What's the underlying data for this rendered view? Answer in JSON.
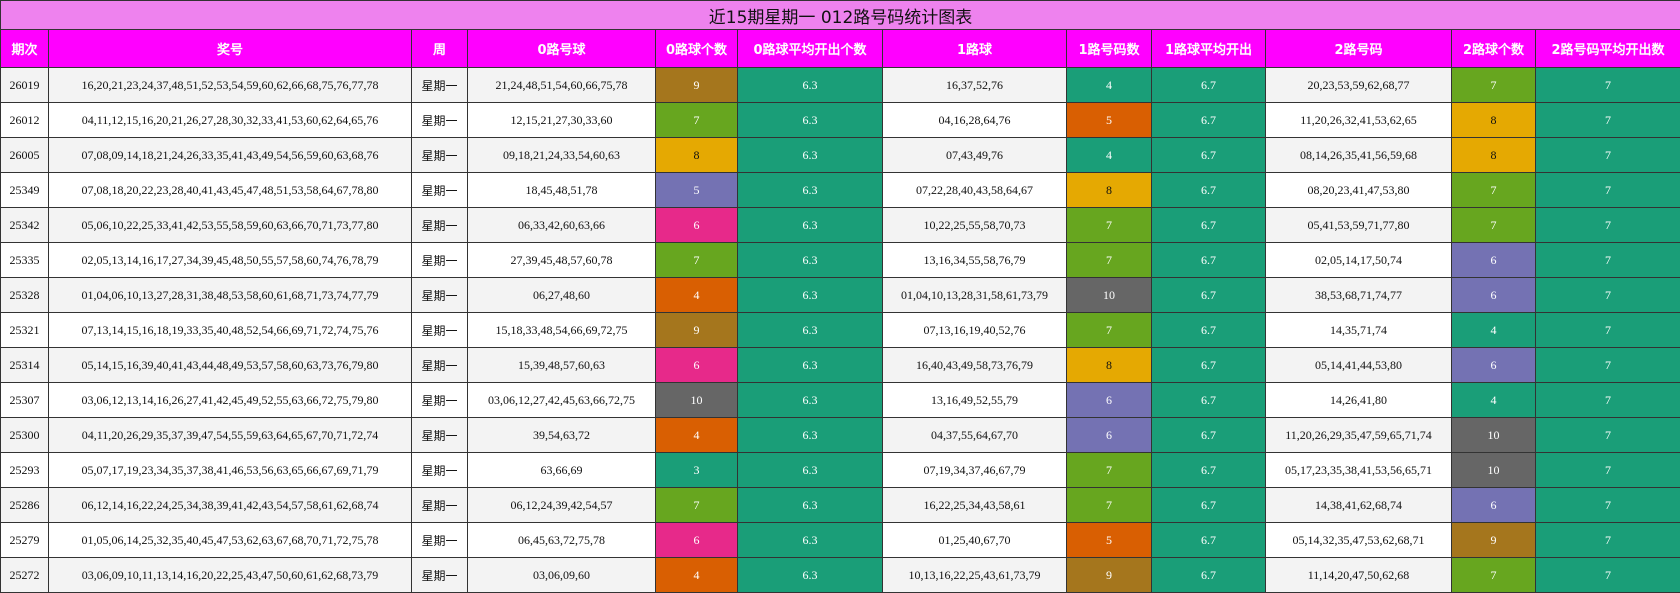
{
  "title": "近15期星期一 012路号码统计图表",
  "headers": [
    "期次",
    "奖号",
    "周",
    "0路号球",
    "0路球个数",
    "0路球平均开出个数",
    "1路球",
    "1路号码数",
    "1路球平均开出",
    "2路号码",
    "2路球个数",
    "2路号码平均开出数"
  ],
  "colors": {
    "teal": "#1a9e78",
    "olive": "#a5761d",
    "lime": "#67a61f",
    "gold": "#e5a902",
    "violet": "#7472b3",
    "pink": "#e7298a",
    "orange": "#d95f02",
    "gray": "#666666",
    "header": "#ff00ff",
    "title": "#ee82ee"
  },
  "rows": [
    {
      "period": "26019",
      "numbers": "16,20,21,23,24,37,48,51,52,53,54,59,60,62,66,68,75,76,77,78",
      "week": "星期一",
      "r0": "21,24,48,51,54,60,66,75,78",
      "r0c": "9",
      "r0c_color": "olive",
      "r0avg": "6.3",
      "r1": "16,37,52,76",
      "r1c": "4",
      "r1c_color": "teal",
      "r1avg": "6.7",
      "r2": "20,23,53,59,62,68,77",
      "r2c": "7",
      "r2c_color": "lime",
      "r2avg": "7"
    },
    {
      "period": "26012",
      "numbers": "04,11,12,15,16,20,21,26,27,28,30,32,33,41,53,60,62,64,65,76",
      "week": "星期一",
      "r0": "12,15,21,27,30,33,60",
      "r0c": "7",
      "r0c_color": "lime",
      "r0avg": "6.3",
      "r1": "04,16,28,64,76",
      "r1c": "5",
      "r1c_color": "orange",
      "r1avg": "6.7",
      "r2": "11,20,26,32,41,53,62,65",
      "r2c": "8",
      "r2c_color": "gold",
      "r2avg": "7"
    },
    {
      "period": "26005",
      "numbers": "07,08,09,14,18,21,24,26,33,35,41,43,49,54,56,59,60,63,68,76",
      "week": "星期一",
      "r0": "09,18,21,24,33,54,60,63",
      "r0c": "8",
      "r0c_color": "gold",
      "r0avg": "6.3",
      "r1": "07,43,49,76",
      "r1c": "4",
      "r1c_color": "teal",
      "r1avg": "6.7",
      "r2": "08,14,26,35,41,56,59,68",
      "r2c": "8",
      "r2c_color": "gold",
      "r2avg": "7"
    },
    {
      "period": "25349",
      "numbers": "07,08,18,20,22,23,28,40,41,43,45,47,48,51,53,58,64,67,78,80",
      "week": "星期一",
      "r0": "18,45,48,51,78",
      "r0c": "5",
      "r0c_color": "violet",
      "r0avg": "6.3",
      "r1": "07,22,28,40,43,58,64,67",
      "r1c": "8",
      "r1c_color": "gold",
      "r1avg": "6.7",
      "r2": "08,20,23,41,47,53,80",
      "r2c": "7",
      "r2c_color": "lime",
      "r2avg": "7"
    },
    {
      "period": "25342",
      "numbers": "05,06,10,22,25,33,41,42,53,55,58,59,60,63,66,70,71,73,77,80",
      "week": "星期一",
      "r0": "06,33,42,60,63,66",
      "r0c": "6",
      "r0c_color": "pink",
      "r0avg": "6.3",
      "r1": "10,22,25,55,58,70,73",
      "r1c": "7",
      "r1c_color": "lime",
      "r1avg": "6.7",
      "r2": "05,41,53,59,71,77,80",
      "r2c": "7",
      "r2c_color": "lime",
      "r2avg": "7"
    },
    {
      "period": "25335",
      "numbers": "02,05,13,14,16,17,27,34,39,45,48,50,55,57,58,60,74,76,78,79",
      "week": "星期一",
      "r0": "27,39,45,48,57,60,78",
      "r0c": "7",
      "r0c_color": "lime",
      "r0avg": "6.3",
      "r1": "13,16,34,55,58,76,79",
      "r1c": "7",
      "r1c_color": "lime",
      "r1avg": "6.7",
      "r2": "02,05,14,17,50,74",
      "r2c": "6",
      "r2c_color": "violet",
      "r2avg": "7"
    },
    {
      "period": "25328",
      "numbers": "01,04,06,10,13,27,28,31,38,48,53,58,60,61,68,71,73,74,77,79",
      "week": "星期一",
      "r0": "06,27,48,60",
      "r0c": "4",
      "r0c_color": "orange",
      "r0avg": "6.3",
      "r1": "01,04,10,13,28,31,58,61,73,79",
      "r1c": "10",
      "r1c_color": "gray",
      "r1avg": "6.7",
      "r2": "38,53,68,71,74,77",
      "r2c": "6",
      "r2c_color": "violet",
      "r2avg": "7"
    },
    {
      "period": "25321",
      "numbers": "07,13,14,15,16,18,19,33,35,40,48,52,54,66,69,71,72,74,75,76",
      "week": "星期一",
      "r0": "15,18,33,48,54,66,69,72,75",
      "r0c": "9",
      "r0c_color": "olive",
      "r0avg": "6.3",
      "r1": "07,13,16,19,40,52,76",
      "r1c": "7",
      "r1c_color": "lime",
      "r1avg": "6.7",
      "r2": "14,35,71,74",
      "r2c": "4",
      "r2c_color": "teal",
      "r2avg": "7"
    },
    {
      "period": "25314",
      "numbers": "05,14,15,16,39,40,41,43,44,48,49,53,57,58,60,63,73,76,79,80",
      "week": "星期一",
      "r0": "15,39,48,57,60,63",
      "r0c": "6",
      "r0c_color": "pink",
      "r0avg": "6.3",
      "r1": "16,40,43,49,58,73,76,79",
      "r1c": "8",
      "r1c_color": "gold",
      "r1avg": "6.7",
      "r2": "05,14,41,44,53,80",
      "r2c": "6",
      "r2c_color": "violet",
      "r2avg": "7"
    },
    {
      "period": "25307",
      "numbers": "03,06,12,13,14,16,26,27,41,42,45,49,52,55,63,66,72,75,79,80",
      "week": "星期一",
      "r0": "03,06,12,27,42,45,63,66,72,75",
      "r0c": "10",
      "r0c_color": "gray",
      "r0avg": "6.3",
      "r1": "13,16,49,52,55,79",
      "r1c": "6",
      "r1c_color": "violet",
      "r1avg": "6.7",
      "r2": "14,26,41,80",
      "r2c": "4",
      "r2c_color": "teal",
      "r2avg": "7"
    },
    {
      "period": "25300",
      "numbers": "04,11,20,26,29,35,37,39,47,54,55,59,63,64,65,67,70,71,72,74",
      "week": "星期一",
      "r0": "39,54,63,72",
      "r0c": "4",
      "r0c_color": "orange",
      "r0avg": "6.3",
      "r1": "04,37,55,64,67,70",
      "r1c": "6",
      "r1c_color": "violet",
      "r1avg": "6.7",
      "r2": "11,20,26,29,35,47,59,65,71,74",
      "r2c": "10",
      "r2c_color": "gray",
      "r2avg": "7"
    },
    {
      "period": "25293",
      "numbers": "05,07,17,19,23,34,35,37,38,41,46,53,56,63,65,66,67,69,71,79",
      "week": "星期一",
      "r0": "63,66,69",
      "r0c": "3",
      "r0c_color": "teal",
      "r0avg": "6.3",
      "r1": "07,19,34,37,46,67,79",
      "r1c": "7",
      "r1c_color": "lime",
      "r1avg": "6.7",
      "r2": "05,17,23,35,38,41,53,56,65,71",
      "r2c": "10",
      "r2c_color": "gray",
      "r2avg": "7"
    },
    {
      "period": "25286",
      "numbers": "06,12,14,16,22,24,25,34,38,39,41,42,43,54,57,58,61,62,68,74",
      "week": "星期一",
      "r0": "06,12,24,39,42,54,57",
      "r0c": "7",
      "r0c_color": "lime",
      "r0avg": "6.3",
      "r1": "16,22,25,34,43,58,61",
      "r1c": "7",
      "r1c_color": "lime",
      "r1avg": "6.7",
      "r2": "14,38,41,62,68,74",
      "r2c": "6",
      "r2c_color": "violet",
      "r2avg": "7"
    },
    {
      "period": "25279",
      "numbers": "01,05,06,14,25,32,35,40,45,47,53,62,63,67,68,70,71,72,75,78",
      "week": "星期一",
      "r0": "06,45,63,72,75,78",
      "r0c": "6",
      "r0c_color": "pink",
      "r0avg": "6.3",
      "r1": "01,25,40,67,70",
      "r1c": "5",
      "r1c_color": "orange",
      "r1avg": "6.7",
      "r2": "05,14,32,35,47,53,62,68,71",
      "r2c": "9",
      "r2c_color": "olive",
      "r2avg": "7"
    },
    {
      "period": "25272",
      "numbers": "03,06,09,10,11,13,14,16,20,22,25,43,47,50,60,61,62,68,73,79",
      "week": "星期一",
      "r0": "03,06,09,60",
      "r0c": "4",
      "r0c_color": "orange",
      "r0avg": "6.3",
      "r1": "10,13,16,22,25,43,61,73,79",
      "r1c": "9",
      "r1c_color": "olive",
      "r1avg": "6.7",
      "r2": "11,14,20,47,50,62,68",
      "r2c": "7",
      "r2c_color": "lime",
      "r2avg": "7"
    }
  ]
}
